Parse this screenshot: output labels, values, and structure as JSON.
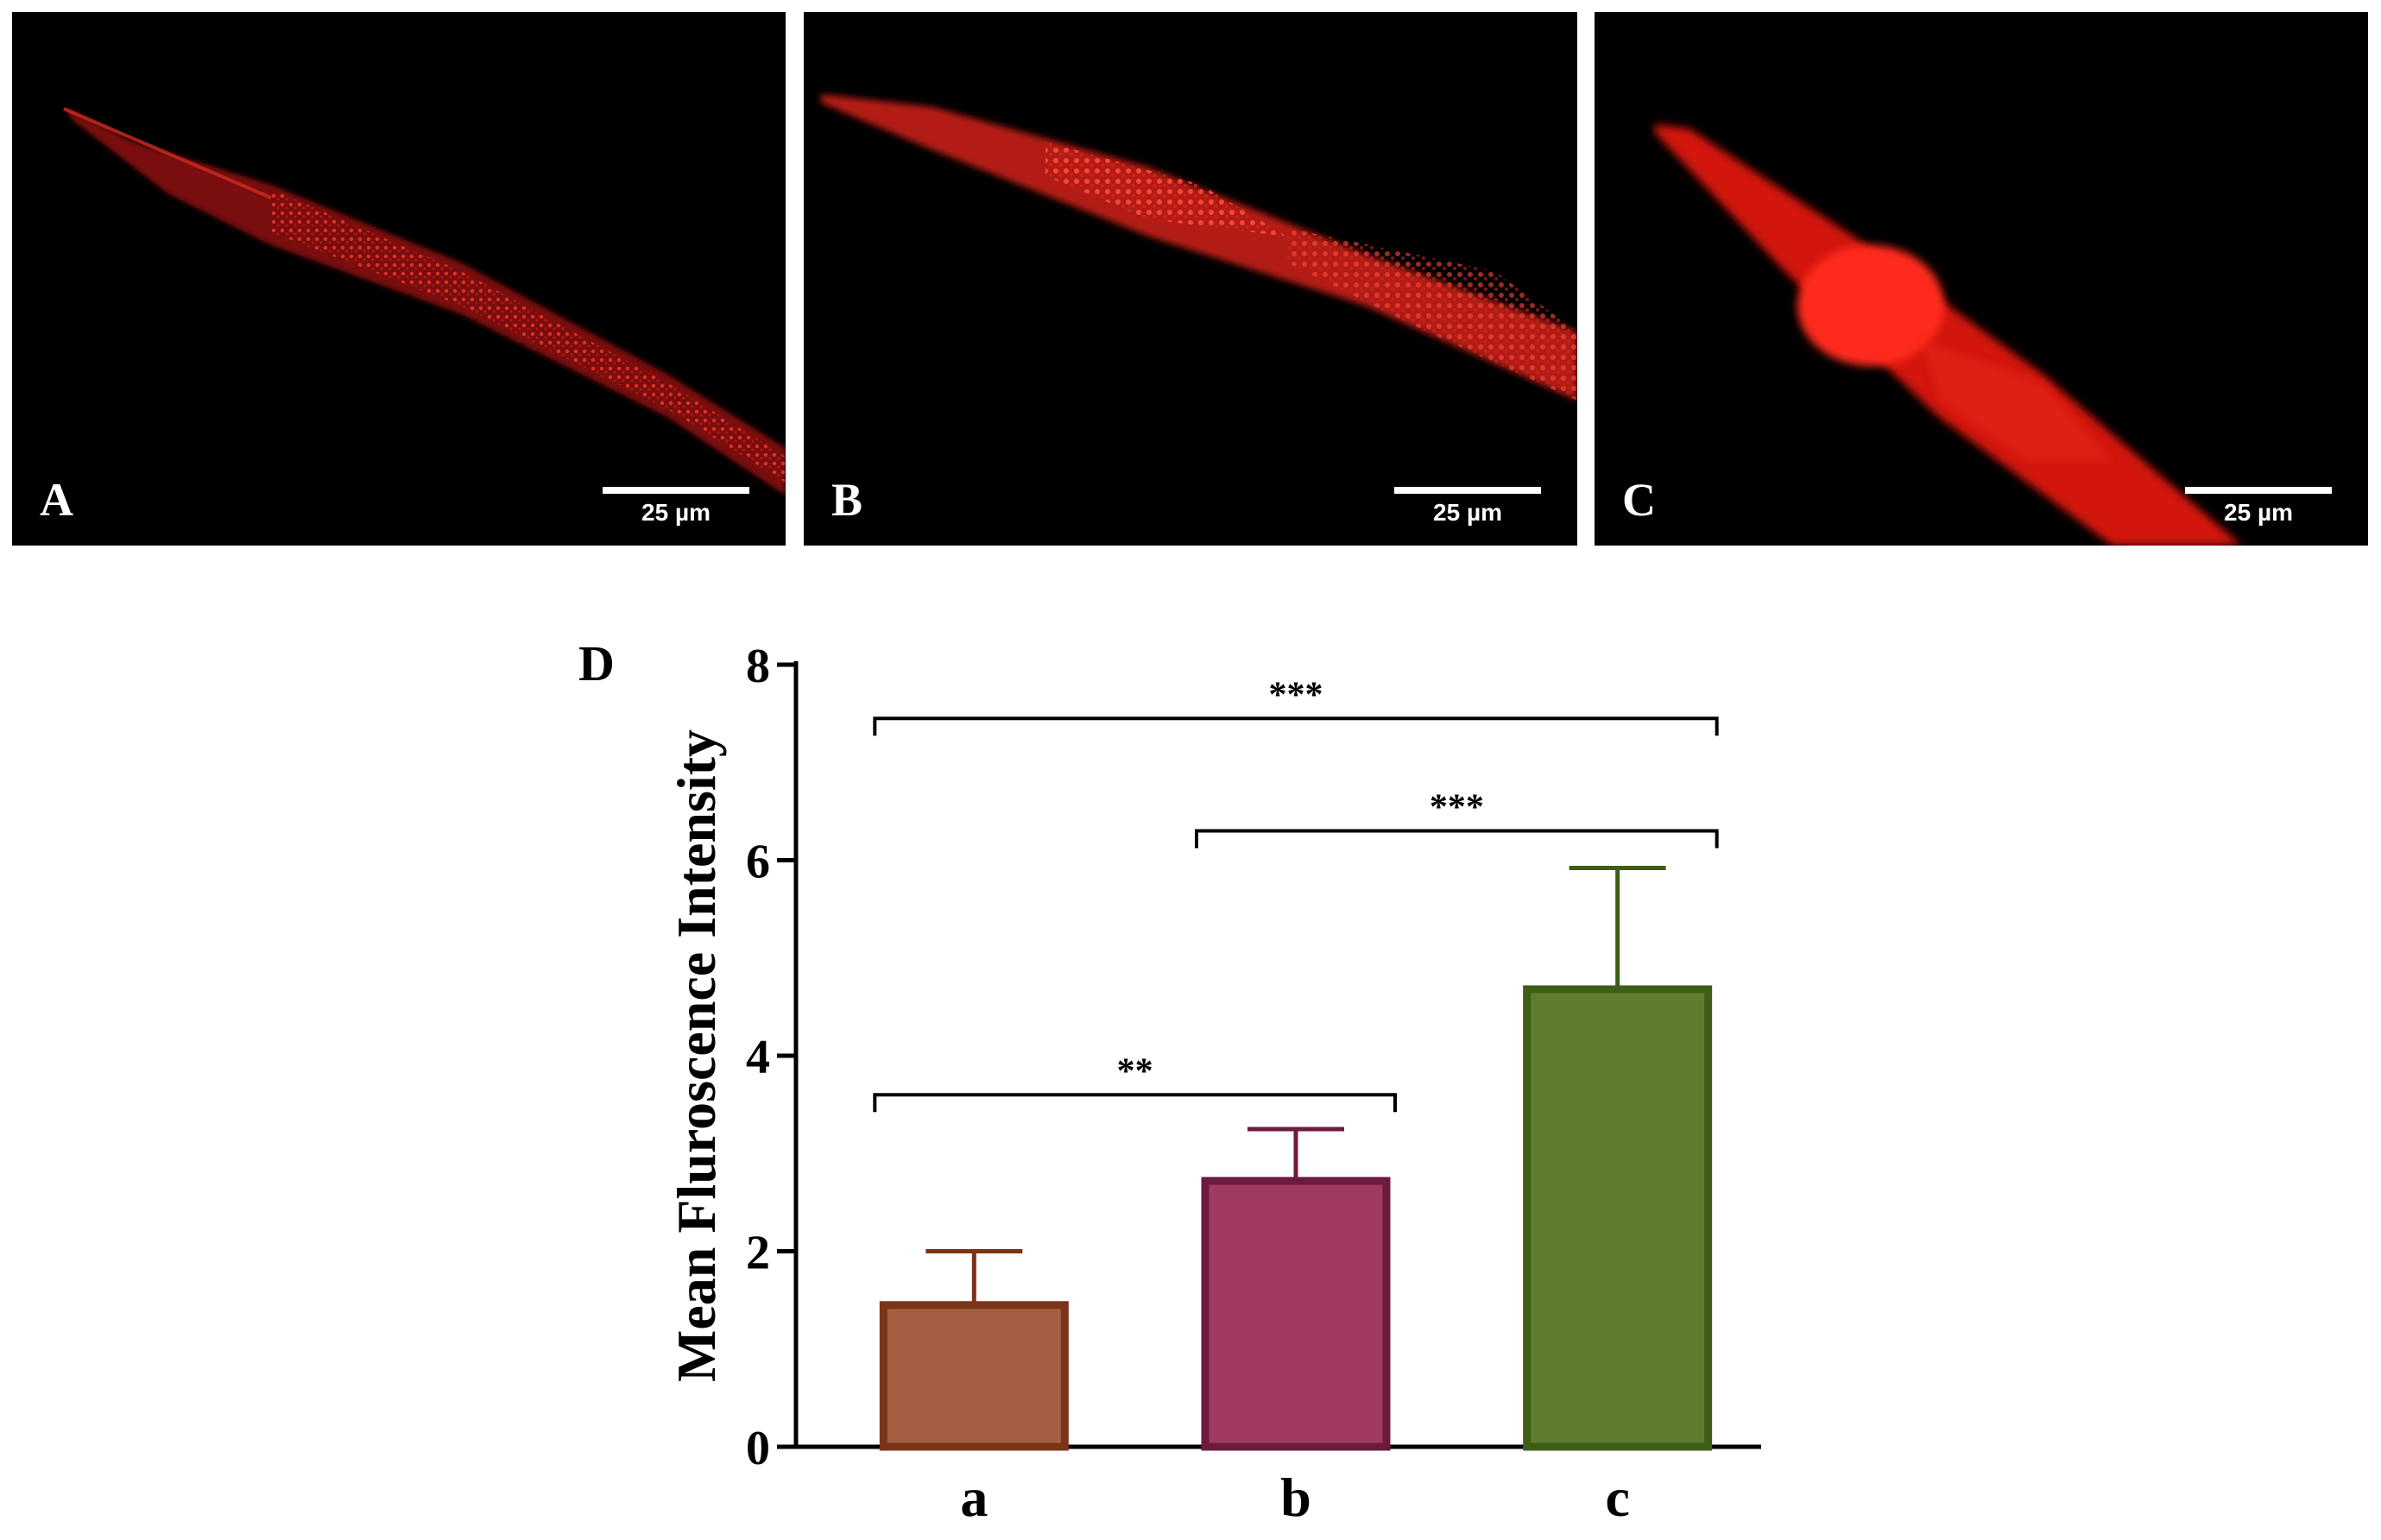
{
  "panels": [
    {
      "letter": "A",
      "scale_label": "25 µm"
    },
    {
      "letter": "B",
      "scale_label": "25 µm"
    },
    {
      "letter": "C",
      "scale_label": "25 µm"
    }
  ],
  "chart_data": {
    "type": "bar",
    "panel_letter": "D",
    "categories": [
      "a",
      "b",
      "c"
    ],
    "values": [
      1.45,
      2.72,
      4.68
    ],
    "error_upper": [
      2.0,
      3.25,
      5.92
    ],
    "colors": {
      "fill": [
        "#a65e43",
        "#a03a62",
        "#5f7e2d"
      ],
      "stroke": [
        "#7a3418",
        "#6d1a3f",
        "#3e5d16"
      ]
    },
    "title": "",
    "xlabel": "",
    "ylabel": "Mean Fluroscence Intensity",
    "ylim": [
      0,
      8
    ],
    "yticks": [
      0,
      2,
      4,
      6,
      8
    ],
    "grid": false,
    "significance": [
      {
        "from": "a",
        "to": "c",
        "label": "***",
        "level": 7.45
      },
      {
        "from": "b",
        "to": "c",
        "label": "***",
        "level": 6.3
      },
      {
        "from": "a",
        "to": "b",
        "label": "**",
        "level": 3.6
      }
    ]
  }
}
